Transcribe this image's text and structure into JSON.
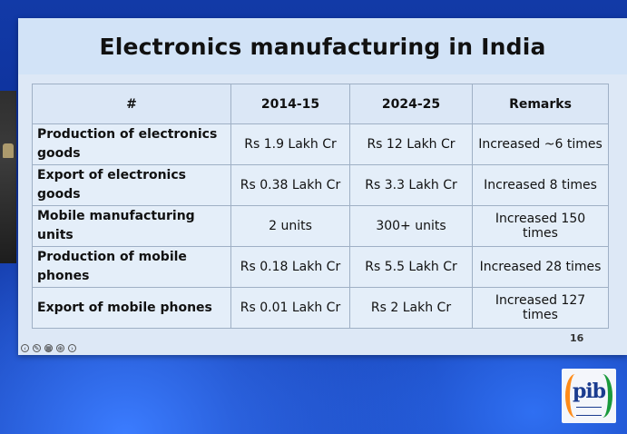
{
  "slide": {
    "title": "Electronics manufacturing in India",
    "page_number": "16"
  },
  "table": {
    "headers": [
      "#",
      "2014-15",
      "2024-25",
      "Remarks"
    ],
    "rows": [
      {
        "label": "Production of electronics goods",
        "y2014": "Rs 1.9 Lakh Cr",
        "y2024": "Rs 12 Lakh Cr",
        "remarks": "Increased ~6 times"
      },
      {
        "label": "Export of electronics goods",
        "y2014": "Rs 0.38 Lakh Cr",
        "y2024": "Rs 3.3 Lakh Cr",
        "remarks": "Increased 8 times"
      },
      {
        "label": "Mobile manufacturing units",
        "y2014": "2 units",
        "y2024": "300+ units",
        "remarks": "Increased 150 times"
      },
      {
        "label": "Production of mobile phones",
        "y2014": "Rs 0.18 Lakh Cr",
        "y2024": "Rs 5.5 Lakh Cr",
        "remarks": "Increased 28 times"
      },
      {
        "label": "Export of mobile phones",
        "y2014": "Rs 0.01 Lakh Cr",
        "y2024": "Rs 2 Lakh Cr",
        "remarks": "Increased 127 times"
      }
    ]
  },
  "toolbar": {
    "icons": [
      "prev-icon",
      "pen-icon",
      "slides-icon",
      "zoom-icon",
      "next-icon"
    ]
  },
  "logo": {
    "text": "pib"
  },
  "colors": {
    "slide_bg": "#dde8f6",
    "title_band": "#d2e3f7",
    "backdrop": "#0b2a8f"
  }
}
